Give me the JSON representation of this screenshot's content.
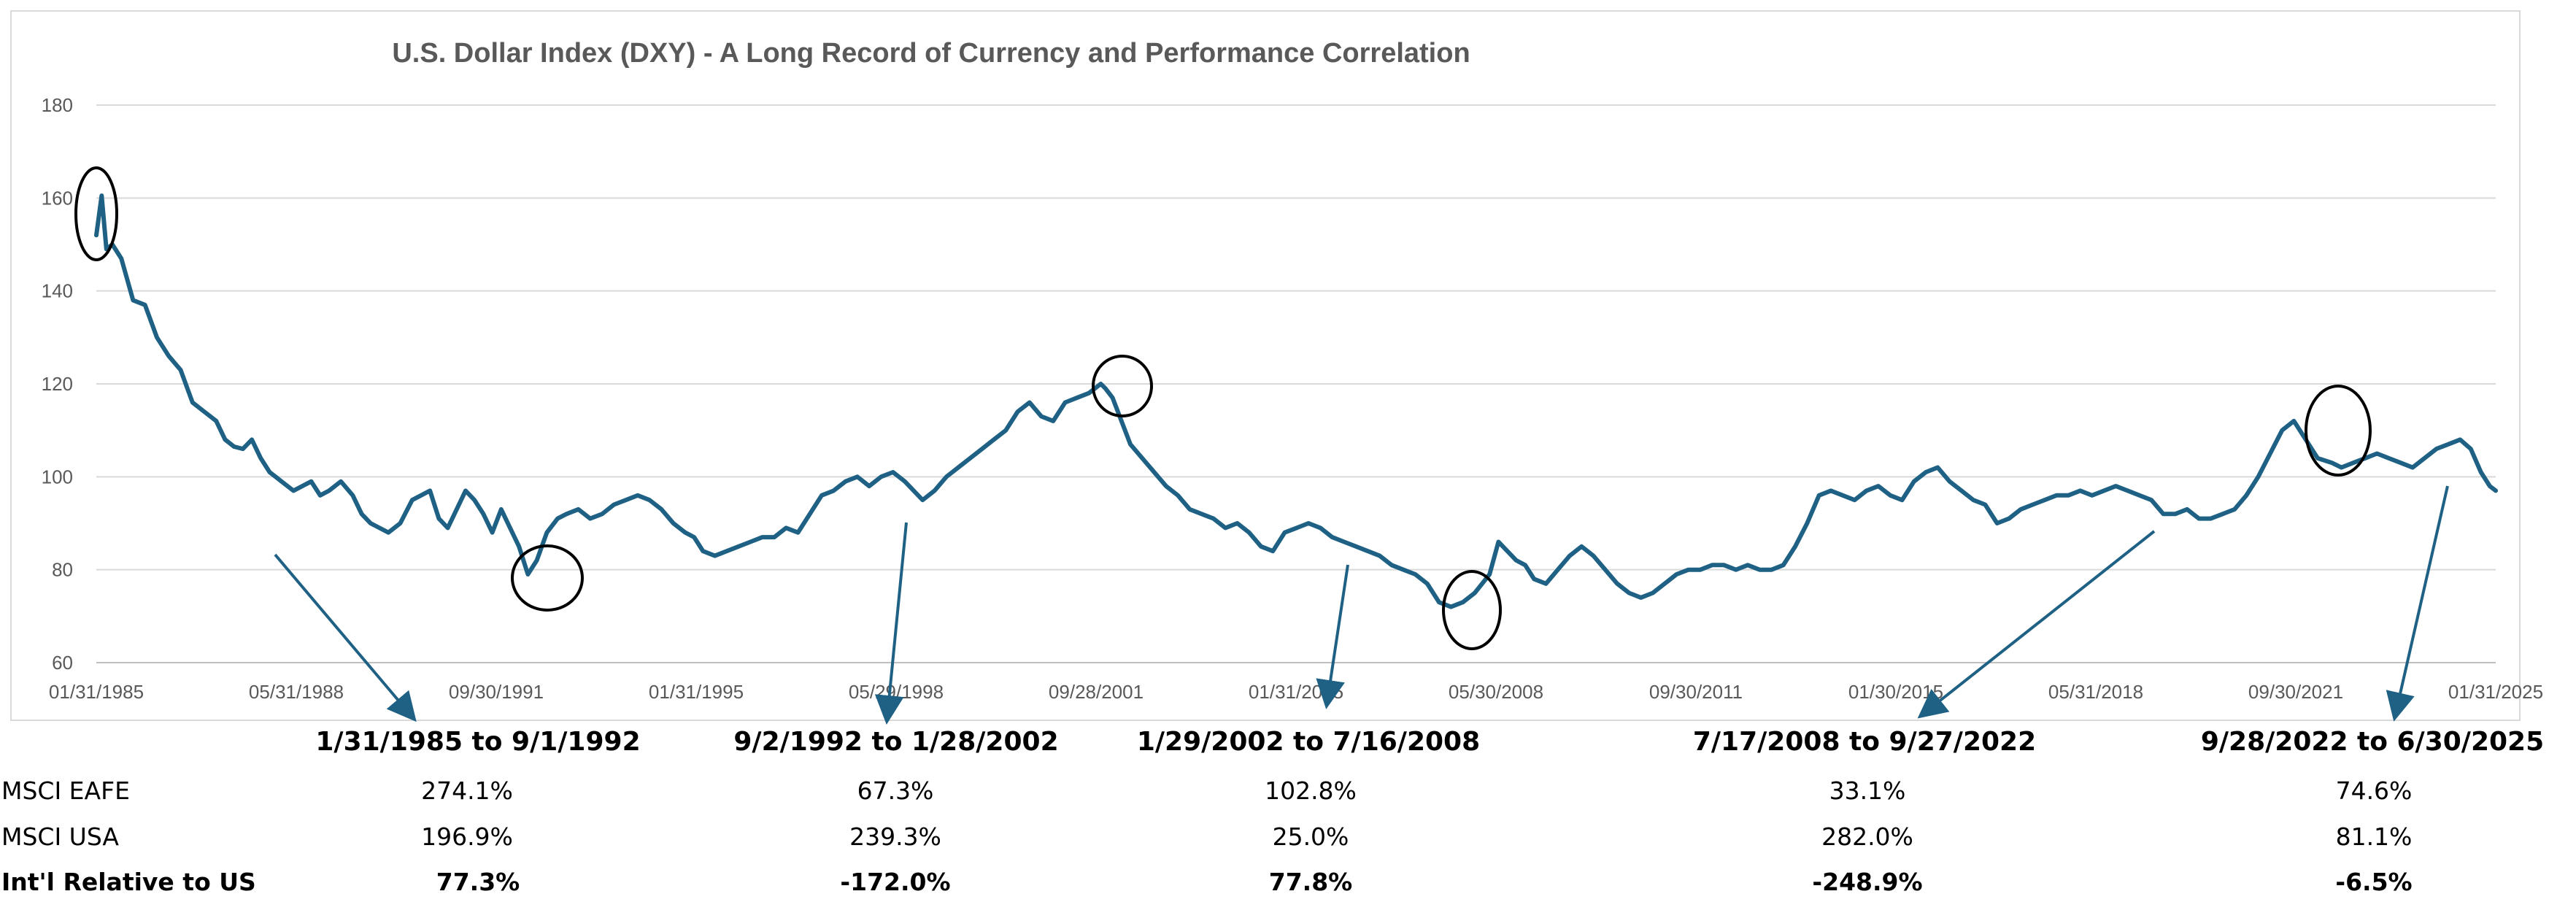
{
  "chart_data": {
    "type": "line",
    "title": "U.S. Dollar Index (DXY) - A Long Record of Currency and Performance Correlation",
    "xlabel": "",
    "ylabel": "",
    "ylim": [
      60,
      180
    ],
    "y_ticks": [
      60,
      80,
      100,
      120,
      140,
      160,
      180
    ],
    "x_tick_labels": [
      "01/31/1985",
      "05/31/1988",
      "09/30/1991",
      "01/31/1995",
      "05/29/1998",
      "09/28/2001",
      "01/31/2005",
      "05/30/2008",
      "09/30/2011",
      "01/30/2015",
      "05/31/2018",
      "09/30/2021",
      "01/31/2025"
    ],
    "x_range": [
      1985.08,
      2025.5
    ],
    "grid": "horizontal",
    "line_color": "#1f6184",
    "series": [
      {
        "name": "DXY",
        "x": [
          1985.08,
          1985.17,
          1985.25,
          1985.35,
          1985.5,
          1985.7,
          1985.9,
          1986.1,
          1986.3,
          1986.5,
          1986.7,
          1986.9,
          1987.1,
          1987.25,
          1987.4,
          1987.55,
          1987.7,
          1987.85,
          1988.0,
          1988.2,
          1988.4,
          1988.55,
          1988.7,
          1988.85,
          1989.0,
          1989.2,
          1989.4,
          1989.55,
          1989.7,
          1989.85,
          1990.0,
          1990.2,
          1990.4,
          1990.55,
          1990.7,
          1990.85,
          1991.0,
          1991.15,
          1991.3,
          1991.45,
          1991.6,
          1991.75,
          1991.9,
          1992.05,
          1992.2,
          1992.35,
          1992.5,
          1992.67,
          1992.85,
          1993.0,
          1993.2,
          1993.4,
          1993.6,
          1993.8,
          1994.0,
          1994.2,
          1994.4,
          1994.6,
          1994.8,
          1995.0,
          1995.15,
          1995.3,
          1995.5,
          1995.7,
          1995.9,
          1996.1,
          1996.3,
          1996.5,
          1996.7,
          1996.9,
          1997.1,
          1997.3,
          1997.5,
          1997.7,
          1997.9,
          1998.1,
          1998.3,
          1998.5,
          1998.7,
          1998.85,
          1999.0,
          1999.2,
          1999.4,
          1999.6,
          1999.8,
          2000.0,
          2000.2,
          2000.4,
          2000.6,
          2000.8,
          2001.0,
          2001.2,
          2001.4,
          2001.6,
          2001.8,
          2002.0,
          2002.08,
          2002.2,
          2002.35,
          2002.5,
          2002.7,
          2002.9,
          2003.1,
          2003.3,
          2003.5,
          2003.7,
          2003.9,
          2004.1,
          2004.3,
          2004.5,
          2004.7,
          2004.9,
          2005.1,
          2005.3,
          2005.5,
          2005.7,
          2005.9,
          2006.1,
          2006.3,
          2006.5,
          2006.7,
          2006.9,
          2007.1,
          2007.3,
          2007.5,
          2007.7,
          2007.9,
          2008.1,
          2008.3,
          2008.55,
          2008.7,
          2008.85,
          2009.0,
          2009.15,
          2009.3,
          2009.5,
          2009.7,
          2009.9,
          2010.1,
          2010.3,
          2010.5,
          2010.7,
          2010.9,
          2011.1,
          2011.3,
          2011.5,
          2011.7,
          2011.9,
          2012.1,
          2012.3,
          2012.5,
          2012.7,
          2012.9,
          2013.1,
          2013.3,
          2013.5,
          2013.7,
          2013.9,
          2014.1,
          2014.3,
          2014.5,
          2014.7,
          2014.9,
          2015.1,
          2015.3,
          2015.5,
          2015.7,
          2015.9,
          2016.1,
          2016.3,
          2016.5,
          2016.7,
          2016.9,
          2017.1,
          2017.3,
          2017.5,
          2017.7,
          2017.9,
          2018.1,
          2018.3,
          2018.5,
          2018.7,
          2018.9,
          2019.1,
          2019.3,
          2019.5,
          2019.7,
          2019.9,
          2020.1,
          2020.3,
          2020.5,
          2020.7,
          2020.9,
          2021.1,
          2021.3,
          2021.5,
          2021.7,
          2021.9,
          2022.1,
          2022.3,
          2022.5,
          2022.74,
          2022.9,
          2023.1,
          2023.3,
          2023.5,
          2023.7,
          2023.9,
          2024.1,
          2024.3,
          2024.5,
          2024.7,
          2024.9,
          2025.08,
          2025.25,
          2025.4,
          2025.5
        ],
        "values": [
          152,
          160.5,
          149,
          150,
          147,
          138,
          137,
          130,
          126,
          123,
          116,
          114,
          112,
          108,
          106.5,
          106,
          108,
          104,
          101,
          99,
          97,
          98,
          99,
          96,
          97,
          99,
          96,
          92,
          90,
          89,
          88,
          90,
          95,
          96,
          97,
          91,
          89,
          93,
          97,
          95,
          92,
          88,
          93,
          89,
          85,
          79,
          82,
          88,
          91,
          92,
          93,
          91,
          92,
          94,
          95,
          96,
          95,
          93,
          90,
          88,
          87,
          84,
          83,
          84,
          85,
          86,
          87,
          87,
          89,
          88,
          92,
          96,
          97,
          99,
          100,
          98,
          100,
          101,
          99,
          97,
          95,
          97,
          100,
          102,
          104,
          106,
          108,
          110,
          114,
          116,
          113,
          112,
          116,
          117,
          118,
          120,
          119,
          117,
          112,
          107,
          104,
          101,
          98,
          96,
          93,
          92,
          91,
          89,
          90,
          88,
          85,
          84,
          88,
          89,
          90,
          89,
          87,
          86,
          85,
          84,
          83,
          81,
          80,
          79,
          77,
          73,
          72,
          73,
          75,
          79,
          86,
          84,
          82,
          81,
          78,
          77,
          80,
          83,
          85,
          83,
          80,
          77,
          75,
          74,
          75,
          77,
          79,
          80,
          80,
          81,
          81,
          80,
          81,
          80,
          80,
          81,
          85,
          90,
          96,
          97,
          96,
          95,
          97,
          98,
          96,
          95,
          99,
          101,
          102,
          99,
          97,
          95,
          94,
          90,
          91,
          93,
          94,
          95,
          96,
          96,
          97,
          96,
          97,
          98,
          97,
          96,
          95,
          92,
          92,
          93,
          91,
          91,
          92,
          93,
          96,
          100,
          105,
          110,
          112,
          108,
          104,
          103,
          102,
          103,
          104,
          105,
          104,
          103,
          102,
          104,
          106,
          107,
          108,
          106,
          101,
          98,
          97
        ]
      }
    ],
    "annotations": [
      "circled peak 1985",
      "circled trough 1992",
      "circled peak 2002",
      "circled trough 2008",
      "circled peak 2022"
    ]
  },
  "summary": {
    "periods": [
      "1/31/1985 to 9/1/1992",
      "9/2/1992 to 1/28/2002",
      "1/29/2002 to 7/16/2008",
      "7/17/2008 to 9/27/2022",
      "9/28/2022 to 6/30/2025"
    ],
    "rows": [
      {
        "label": "MSCI EAFE",
        "values": [
          "274.1%",
          "67.3%",
          "102.8%",
          "33.1%",
          "74.6%"
        ]
      },
      {
        "label": "MSCI USA",
        "values": [
          "196.9%",
          "239.3%",
          "25.0%",
          "282.0%",
          "81.1%"
        ]
      },
      {
        "label": "Int'l Relative to US",
        "values": [
          "77.3%",
          "-172.0%",
          "77.8%",
          "-248.9%",
          "-6.5%"
        ]
      }
    ]
  }
}
